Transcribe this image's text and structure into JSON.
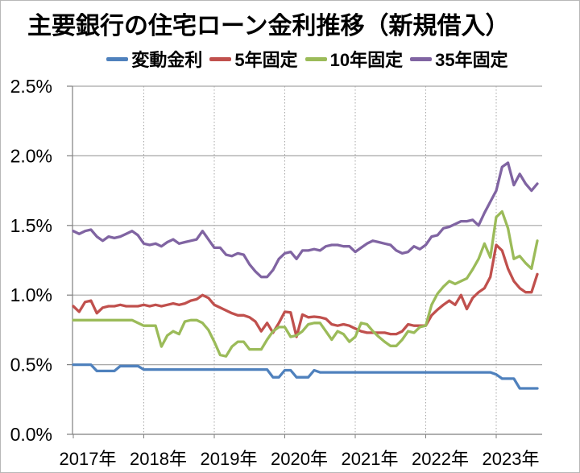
{
  "chart_data": {
    "type": "line",
    "title": "主要銀行の住宅ローン金利推移（新規借入）",
    "x_unit": "month",
    "x_start": "2017-01",
    "x_end": "2023-08",
    "x_tick_labels": [
      "2017年",
      "2018年",
      "2019年",
      "2020年",
      "2021年",
      "2022年",
      "2023年"
    ],
    "y_tick_labels": [
      "0.0%",
      "0.5%",
      "1.0%",
      "1.5%",
      "2.0%",
      "2.5%"
    ],
    "ylim": [
      0,
      2.5
    ],
    "grid": true,
    "legend_position": "top",
    "colors": {
      "axis": "#7f7f7f",
      "gridline": "#a6a6a6",
      "text": "#000000"
    },
    "series": [
      {
        "name": "変動金利",
        "color": "#4f81bd",
        "values": [
          0.5,
          0.5,
          0.5,
          0.5,
          0.455,
          0.455,
          0.455,
          0.455,
          0.49,
          0.49,
          0.49,
          0.49,
          0.465,
          0.465,
          0.465,
          0.465,
          0.465,
          0.465,
          0.465,
          0.465,
          0.465,
          0.465,
          0.465,
          0.465,
          0.465,
          0.465,
          0.465,
          0.465,
          0.465,
          0.465,
          0.465,
          0.465,
          0.465,
          0.465,
          0.41,
          0.41,
          0.46,
          0.46,
          0.41,
          0.41,
          0.41,
          0.46,
          0.445,
          0.445,
          0.445,
          0.445,
          0.445,
          0.445,
          0.445,
          0.445,
          0.445,
          0.445,
          0.445,
          0.445,
          0.445,
          0.445,
          0.445,
          0.445,
          0.445,
          0.445,
          0.445,
          0.445,
          0.445,
          0.445,
          0.445,
          0.445,
          0.445,
          0.445,
          0.445,
          0.445,
          0.445,
          0.445,
          0.43,
          0.4,
          0.4,
          0.4,
          0.33,
          0.33,
          0.33,
          0.33
        ]
      },
      {
        "name": "5年固定",
        "color": "#c0504d",
        "values": [
          0.92,
          0.88,
          0.95,
          0.96,
          0.87,
          0.91,
          0.92,
          0.92,
          0.93,
          0.92,
          0.92,
          0.92,
          0.93,
          0.92,
          0.93,
          0.92,
          0.93,
          0.94,
          0.93,
          0.94,
          0.96,
          0.97,
          1.0,
          0.98,
          0.93,
          0.91,
          0.89,
          0.87,
          0.855,
          0.855,
          0.84,
          0.81,
          0.74,
          0.8,
          0.73,
          0.8,
          0.88,
          0.875,
          0.7,
          0.86,
          0.84,
          0.845,
          0.84,
          0.83,
          0.79,
          0.78,
          0.79,
          0.78,
          0.76,
          0.74,
          0.73,
          0.73,
          0.73,
          0.73,
          0.72,
          0.72,
          0.74,
          0.79,
          0.78,
          0.78,
          0.78,
          0.855,
          0.895,
          0.93,
          0.96,
          0.93,
          1.0,
          0.9,
          0.98,
          1.02,
          1.05,
          1.13,
          1.36,
          1.32,
          1.19,
          1.1,
          1.05,
          1.02,
          1.02,
          1.15
        ]
      },
      {
        "name": "10年固定",
        "color": "#9bbb59",
        "values": [
          0.82,
          0.82,
          0.82,
          0.82,
          0.82,
          0.82,
          0.82,
          0.82,
          0.82,
          0.82,
          0.82,
          0.8,
          0.78,
          0.78,
          0.78,
          0.63,
          0.71,
          0.74,
          0.72,
          0.81,
          0.82,
          0.82,
          0.8,
          0.75,
          0.665,
          0.57,
          0.56,
          0.63,
          0.665,
          0.665,
          0.61,
          0.61,
          0.61,
          0.68,
          0.74,
          0.77,
          0.77,
          0.7,
          0.71,
          0.74,
          0.79,
          0.8,
          0.8,
          0.74,
          0.68,
          0.74,
          0.72,
          0.665,
          0.7,
          0.8,
          0.79,
          0.74,
          0.7,
          0.665,
          0.635,
          0.635,
          0.68,
          0.74,
          0.73,
          0.77,
          0.78,
          0.93,
          1.01,
          1.06,
          1.1,
          1.08,
          1.1,
          1.12,
          1.185,
          1.26,
          1.37,
          1.27,
          1.56,
          1.6,
          1.48,
          1.26,
          1.28,
          1.23,
          1.19,
          1.39
        ]
      },
      {
        "name": "35年固定",
        "color": "#8064a2",
        "values": [
          1.46,
          1.44,
          1.46,
          1.47,
          1.42,
          1.39,
          1.42,
          1.41,
          1.42,
          1.44,
          1.46,
          1.43,
          1.37,
          1.36,
          1.37,
          1.35,
          1.38,
          1.4,
          1.37,
          1.38,
          1.39,
          1.4,
          1.46,
          1.4,
          1.34,
          1.34,
          1.29,
          1.28,
          1.3,
          1.29,
          1.22,
          1.17,
          1.13,
          1.13,
          1.18,
          1.26,
          1.3,
          1.31,
          1.26,
          1.32,
          1.32,
          1.33,
          1.32,
          1.35,
          1.36,
          1.36,
          1.35,
          1.35,
          1.31,
          1.34,
          1.37,
          1.39,
          1.38,
          1.37,
          1.36,
          1.32,
          1.3,
          1.31,
          1.35,
          1.33,
          1.36,
          1.42,
          1.43,
          1.48,
          1.49,
          1.51,
          1.53,
          1.53,
          1.54,
          1.5,
          1.59,
          1.67,
          1.75,
          1.92,
          1.95,
          1.79,
          1.87,
          1.8,
          1.75,
          1.8
        ]
      }
    ]
  }
}
